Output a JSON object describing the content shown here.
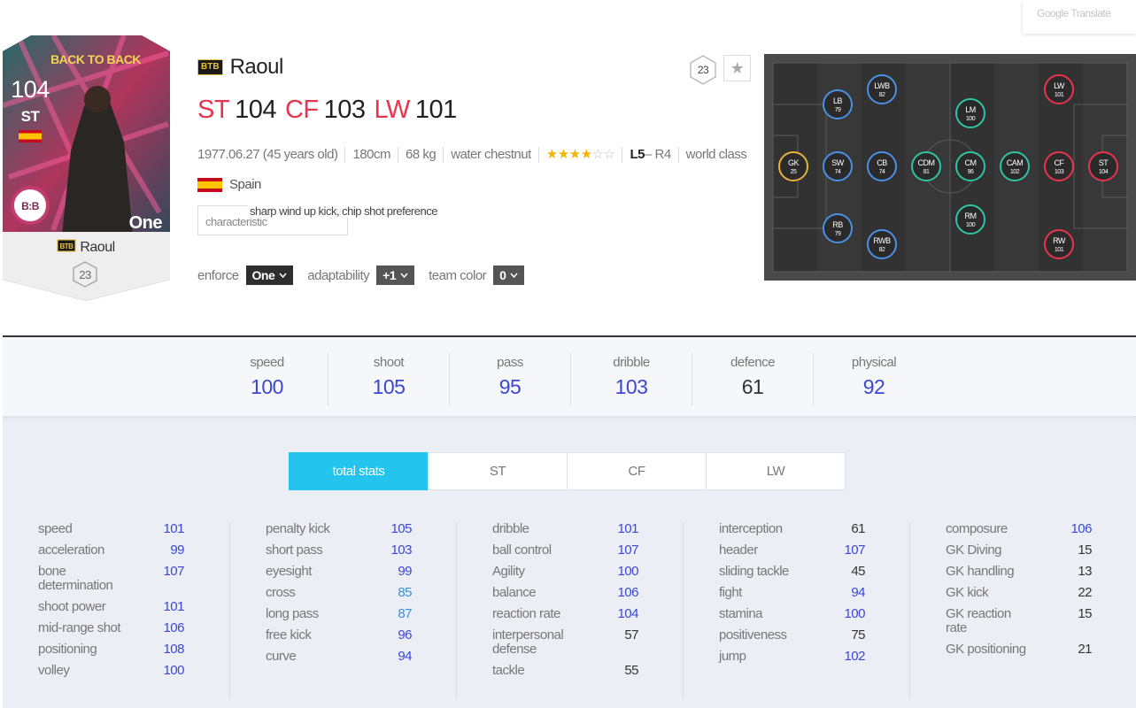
{
  "translate": "Google Translate",
  "card": {
    "edition": "BACK TO BACK",
    "ovr": 104,
    "position": "ST",
    "logo": "B:B",
    "enforce": "One",
    "badge": "BTB",
    "name": "Raoul",
    "pay": 23
  },
  "header": {
    "badge": "BTB",
    "name": "Raoul",
    "pay": 23,
    "favorite": "★",
    "positions": [
      {
        "pos": "ST",
        "ovr": 104
      },
      {
        "pos": "CF",
        "ovr": 103
      },
      {
        "pos": "LW",
        "ovr": 101
      }
    ],
    "info": [
      "1977.06.27 (45 years old)",
      "180cm",
      "68 kg",
      "water chestnut"
    ],
    "stars": "★★★★☆☆",
    "foot_left": "L5",
    "foot_right": "– R4",
    "grade": "world class",
    "nation": "Spain",
    "trait_button": "characteristic",
    "trait_tooltip": "sharp wind up kick, chip shot preference",
    "controls": [
      {
        "label": "enforce",
        "value": "One"
      },
      {
        "label": "adaptability",
        "value": "+1"
      },
      {
        "label": "team color",
        "value": "0"
      }
    ]
  },
  "formation": [
    {
      "pos": "GK",
      "ovr": 25,
      "color": "#e9b23b"
    },
    {
      "pos": "LB",
      "ovr": 79,
      "color": "#4a90e2"
    },
    {
      "pos": "SW",
      "ovr": 74,
      "color": "#4a90e2"
    },
    {
      "pos": "RB",
      "ovr": 79,
      "color": "#4a90e2"
    },
    {
      "pos": "LWB",
      "ovr": 82,
      "color": "#4a90e2"
    },
    {
      "pos": "CB",
      "ovr": 74,
      "color": "#4a90e2"
    },
    {
      "pos": "RWB",
      "ovr": 82,
      "color": "#4a90e2"
    },
    {
      "pos": "CDM",
      "ovr": 81,
      "color": "#2ec4a0"
    },
    {
      "pos": "LM",
      "ovr": 100,
      "color": "#2ec4a0"
    },
    {
      "pos": "CM",
      "ovr": 96,
      "color": "#2ec4a0"
    },
    {
      "pos": "RM",
      "ovr": 100,
      "color": "#2ec4a0"
    },
    {
      "pos": "CAM",
      "ovr": 102,
      "color": "#2ec4a0"
    },
    {
      "pos": "LW",
      "ovr": 101,
      "color": "#e8344e"
    },
    {
      "pos": "CF",
      "ovr": 103,
      "color": "#e8344e"
    },
    {
      "pos": "RW",
      "ovr": 101,
      "color": "#e8344e"
    },
    {
      "pos": "ST",
      "ovr": 104,
      "color": "#e8344e"
    }
  ],
  "summary": [
    {
      "label": "speed",
      "value": 100
    },
    {
      "label": "shoot",
      "value": 105
    },
    {
      "label": "pass",
      "value": 95
    },
    {
      "label": "dribble",
      "value": 103
    },
    {
      "label": "defence",
      "value": 61
    },
    {
      "label": "physical",
      "value": 92
    }
  ],
  "tabs": [
    "total stats",
    "ST",
    "CF",
    "LW"
  ],
  "stats": [
    [
      {
        "label": "speed",
        "value": 101
      },
      {
        "label": "acceleration",
        "value": 99
      },
      {
        "label": "bone determination",
        "value": 107
      },
      {
        "label": "shoot power",
        "value": 101
      },
      {
        "label": "mid-range shot",
        "value": 106
      },
      {
        "label": "positioning",
        "value": 108
      },
      {
        "label": "volley",
        "value": 100
      }
    ],
    [
      {
        "label": "penalty kick",
        "value": 105
      },
      {
        "label": "short pass",
        "value": 103
      },
      {
        "label": "eyesight",
        "value": 99
      },
      {
        "label": "cross",
        "value": 85
      },
      {
        "label": "long pass",
        "value": 87
      },
      {
        "label": "free kick",
        "value": 96
      },
      {
        "label": "curve",
        "value": 94
      }
    ],
    [
      {
        "label": "dribble",
        "value": 101
      },
      {
        "label": "ball control",
        "value": 107
      },
      {
        "label": "Agility",
        "value": 100
      },
      {
        "label": "balance",
        "value": 106
      },
      {
        "label": "reaction rate",
        "value": 104
      },
      {
        "label": "interpersonal defense",
        "value": 57
      },
      {
        "label": "tackle",
        "value": 55
      }
    ],
    [
      {
        "label": "interception",
        "value": 61
      },
      {
        "label": "header",
        "value": 107
      },
      {
        "label": "sliding tackle",
        "value": 45
      },
      {
        "label": "fight",
        "value": 94
      },
      {
        "label": "stamina",
        "value": 100
      },
      {
        "label": "positiveness",
        "value": 75
      },
      {
        "label": "jump",
        "value": 102
      }
    ],
    [
      {
        "label": "composure",
        "value": 106
      },
      {
        "label": "GK Diving",
        "value": 15
      },
      {
        "label": "GK handling",
        "value": 13
      },
      {
        "label": "GK kick",
        "value": 22
      },
      {
        "label": "GK reaction rate",
        "value": 15
      },
      {
        "label": "GK positioning",
        "value": 21
      }
    ]
  ]
}
